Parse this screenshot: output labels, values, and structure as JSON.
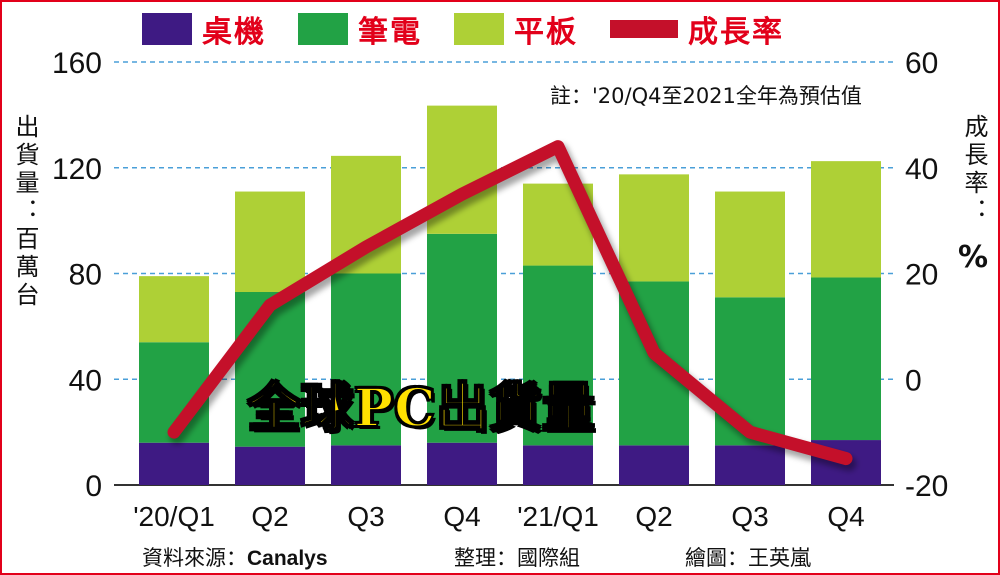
{
  "legend": {
    "desktop": "桌機",
    "notebook": "筆電",
    "tablet": "平板",
    "growth": "成長率"
  },
  "note": "註：'20/Q4至2021全年為預估值",
  "left_axis_label": "出貨量：百萬台",
  "right_axis_label": "成長率：",
  "right_axis_unit": "%",
  "overlay_title": "全球PC出貨量",
  "footer": {
    "source_label": "資料來源：",
    "source_value": "Canalys",
    "editor": "整理：國際組",
    "illustrator": "繪圖：王英嵐"
  },
  "colors": {
    "desktop": "#3e1a83",
    "notebook": "#22a245",
    "tablet": "#aed036",
    "growth": "#c4102a",
    "grid": "#4a9fd8",
    "frame": "#e2001a"
  },
  "chart_data": {
    "type": "bar",
    "stacked": true,
    "categories": [
      "'20/Q1",
      "Q2",
      "Q3",
      "Q4",
      "'21/Q1",
      "Q2",
      "Q3",
      "Q4"
    ],
    "series": [
      {
        "name": "桌機",
        "values": [
          16,
          14.5,
          15,
          16,
          15,
          15,
          15,
          17
        ]
      },
      {
        "name": "筆電",
        "values": [
          38,
          58.5,
          65,
          79,
          68,
          62,
          56,
          61.5
        ]
      },
      {
        "name": "平板",
        "values": [
          25,
          38,
          44.5,
          48.5,
          31,
          40.5,
          40,
          44
        ]
      }
    ],
    "line_series": {
      "name": "成長率",
      "axis": "right",
      "values": [
        -10,
        14,
        25,
        35,
        44,
        5,
        -10,
        -15
      ]
    },
    "ylim": [
      0,
      160
    ],
    "yticks": [
      0,
      40,
      80,
      120,
      160
    ],
    "y2lim": [
      -20,
      60
    ],
    "y2ticks": [
      -20,
      0,
      20,
      40,
      60
    ],
    "grid": true,
    "legend_position": "top"
  }
}
